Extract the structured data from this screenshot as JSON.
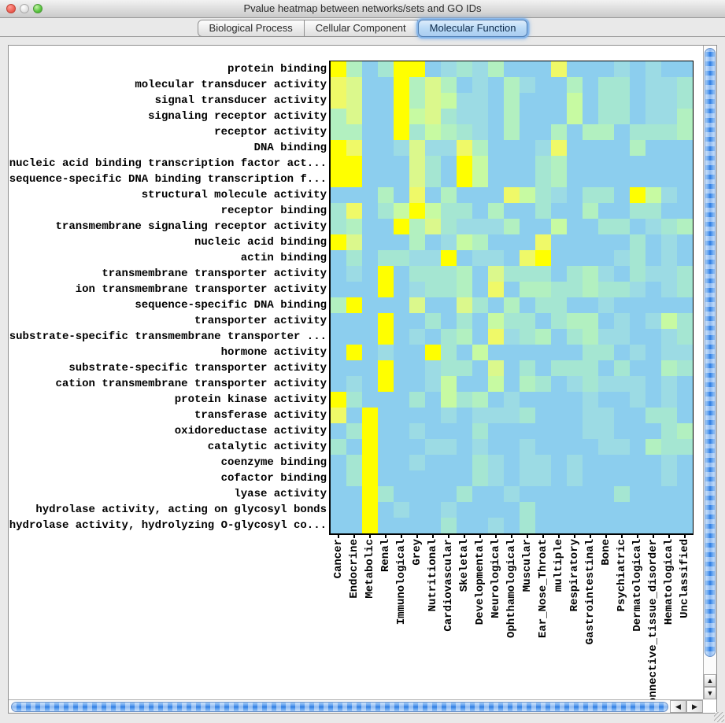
{
  "window": {
    "title": "Pvalue heatmap between networks/sets and GO IDs"
  },
  "tabs": [
    {
      "label": "Biological Process",
      "selected": false
    },
    {
      "label": "Cellular Component",
      "selected": false
    },
    {
      "label": "Molecular Function",
      "selected": true
    }
  ],
  "scrollbar_icons": {
    "up": "▲",
    "down": "▼",
    "left": "◀",
    "right": "▶"
  },
  "chart_data": {
    "type": "heatmap",
    "title": "Pvalue heatmap between networks/sets and GO IDs",
    "rows": [
      "protein binding",
      "molecular transducer activity",
      "signal transducer activity",
      "signaling receptor activity",
      "receptor activity",
      "DNA binding",
      "nucleic acid binding transcription factor act...",
      "sequence-specific DNA binding transcription f...",
      "structural molecule activity",
      "receptor binding",
      "transmembrane signaling receptor activity",
      "nucleic acid binding",
      "actin binding",
      "transmembrane transporter activity",
      "ion transmembrane transporter activity",
      "sequence-specific DNA binding",
      "transporter activity",
      "substrate-specific transmembrane transporter ...",
      "hormone activity",
      "substrate-specific transporter activity",
      "cation transmembrane transporter activity",
      "protein kinase activity",
      "transferase activity",
      "oxidoreductase activity",
      "catalytic activity",
      "coenzyme binding",
      "cofactor binding",
      "lyase activity",
      "hydrolase activity, acting on glycosyl bonds",
      "hydrolase activity, hydrolyzing O-glycosyl co..."
    ],
    "columns": [
      "Cancer",
      "Endocrine",
      "Metabolic",
      "Renal",
      "Immunological",
      "Grey",
      "Nutritional",
      "Cardiovascular",
      "Skeletal",
      "Developmental",
      "Neurological",
      "Ophthamological",
      "Muscular",
      "Ear_Nose_Throat",
      "multiple",
      "Respiratory",
      "Gastrointestinal",
      "Bone",
      "Psychiatric",
      "Dermatological",
      "Connective_tissue_disorder",
      "Hematological",
      "Unclassified"
    ],
    "palette": {
      "Y": "#ffff00",
      "y": "#eff968",
      "p": "#dbf88c",
      "g": "#c7faa2",
      "m": "#b2f0c0",
      "t": "#a5e6d2",
      "s": "#9cdbe4",
      "b": "#8cceee"
    },
    "color_scale_note": "yellow = most significant p-value, light blue = least significant (no colorbar shown)",
    "grid_color_codes": [
      "YmbtYYbstsmbbbybbbsbsbb",
      "ypbbYmpmbsbmsbbmbttbsst",
      "ypbbYmpgssbmbbbgbttbsst",
      "mpbbYgptssbmbbbgbttbssm",
      "mmbbYtgmtsbmbbmbmmbtttm",
      "Yybbspssymbbbsybbbbmbbb",
      "YYbbbptbYgbbbtmbbbbbbbb",
      "YYbbbptbYgbbbtmbbbbbbbb",
      "bbbmbybmbbbygtsbttbYgsb",
      "tybtgYgttbmbbtbbmbbttbb",
      "tmbbYmptsssmbbgbbttbstm",
      "Ypbbbmbsgmbbbybbbbbtbsb",
      "btbttssYbssbyYbbbbstbsb",
      "bsbYbtttmbptttbtmsbtsst",
      "bbbYbsttmbybmmttmttsbst",
      "mYbbbpbbptbmbttbbsbbbbb",
      "bbbYbbtbtbgttbtmmbsbsgt",
      "bbbYbsbtmbystmbtmssbbst",
      "bYbsbbYtbgbbbbbbttbsbss",
      "bbbYbbsttbpbtbtttbtbbmt",
      "bsbYbbsgbbgbmtbstsssbsb",
      "Ytbbbtbgtmbsbbbbsbbsbsb",
      "ybYbbbbsbssstbbbssbbttb",
      "btYbbsbbbtbbbbbbssbbbtm",
      "tbYbbbssbsbbsbbbbssbmtt",
      "btYbbsbbbtsbssbsbbbbbsb",
      "btYbbbbbbtsbssbsbbbbbsb",
      "bbYtbbbbtbbsbbbbbbtbbbb",
      "bbYbsbbsbbbbtbbbbbbbbbb",
      "bbYbbbbtbbsbtbbbbbbbbbb"
    ]
  }
}
